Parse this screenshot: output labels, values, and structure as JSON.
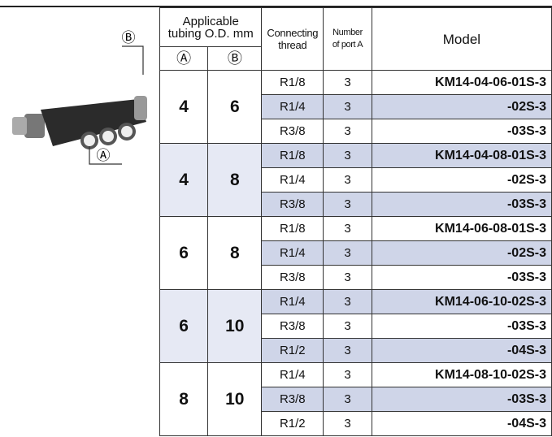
{
  "figure": {
    "label_a": "Ⓐ",
    "label_b": "Ⓑ"
  },
  "table": {
    "header": {
      "tubing": "Applicable tubing O.D. mm",
      "a": "Ⓐ",
      "b": "Ⓑ",
      "thread": "Connecting thread",
      "ports": "Number of port A",
      "model": "Model"
    },
    "groups": [
      {
        "a": "4",
        "b": "6",
        "rows": [
          [
            "R1/8",
            "3",
            "KM14-04-06-01S-3"
          ],
          [
            "R1/4",
            "3",
            "-02S-3"
          ],
          [
            "R3/8",
            "3",
            "-03S-3"
          ]
        ]
      },
      {
        "a": "4",
        "b": "8",
        "rows": [
          [
            "R1/8",
            "3",
            "KM14-04-08-01S-3"
          ],
          [
            "R1/4",
            "3",
            "-02S-3"
          ],
          [
            "R3/8",
            "3",
            "-03S-3"
          ]
        ]
      },
      {
        "a": "6",
        "b": "8",
        "rows": [
          [
            "R1/8",
            "3",
            "KM14-06-08-01S-3"
          ],
          [
            "R1/4",
            "3",
            "-02S-3"
          ],
          [
            "R3/8",
            "3",
            "-03S-3"
          ]
        ]
      },
      {
        "a": "6",
        "b": "10",
        "rows": [
          [
            "R1/4",
            "3",
            "KM14-06-10-02S-3"
          ],
          [
            "R3/8",
            "3",
            "-03S-3"
          ],
          [
            "R1/2",
            "3",
            "-04S-3"
          ]
        ]
      },
      {
        "a": "8",
        "b": "10",
        "rows": [
          [
            "R1/4",
            "3",
            "KM14-08-10-02S-3"
          ],
          [
            "R3/8",
            "3",
            "-03S-3"
          ],
          [
            "R1/2",
            "3",
            "-04S-3"
          ]
        ]
      }
    ]
  }
}
